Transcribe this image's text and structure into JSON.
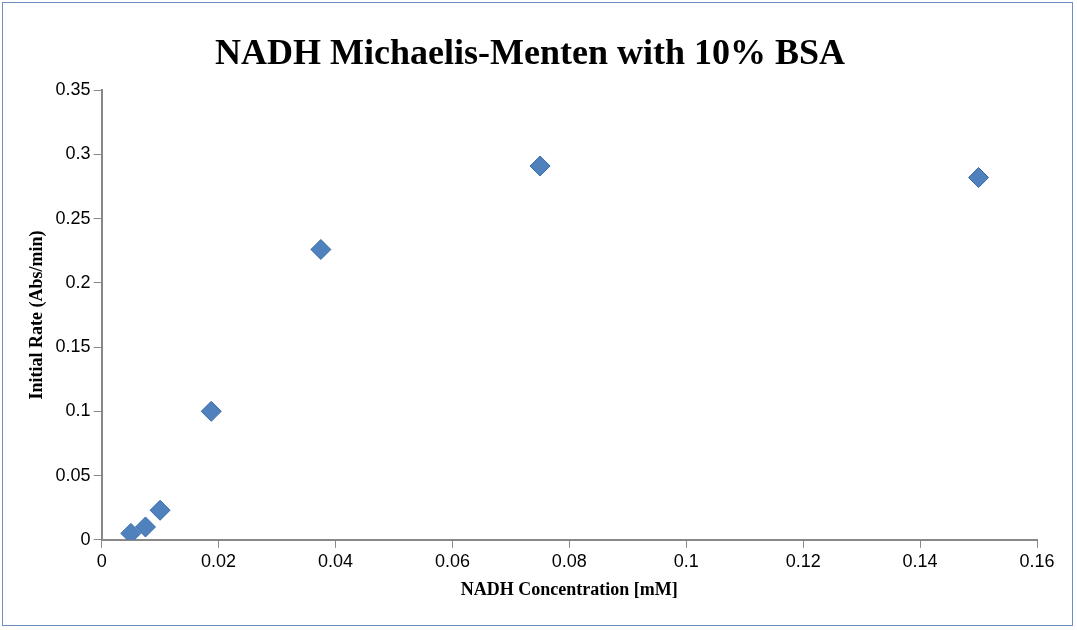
{
  "chart_data": {
    "type": "scatter",
    "title": "NADH Michaelis-Menten with 10% BSA",
    "xlabel": "NADH Concentration [mM]",
    "ylabel": "Initial Rate (Abs/min)",
    "x": [
      0.005,
      0.0075,
      0.01,
      0.01875,
      0.0375,
      0.075,
      0.15
    ],
    "series": [
      {
        "color": "#4f81bd",
        "values": [
          0.005,
          0.01,
          0.023,
          0.1,
          0.226,
          0.291,
          0.282
        ]
      }
    ],
    "xlim": [
      0,
      0.16
    ],
    "xticks": [
      0,
      0.02,
      0.04,
      0.06,
      0.08,
      0.1,
      0.12,
      0.14,
      0.16
    ],
    "ylim": [
      0,
      0.35
    ],
    "yticks": [
      0,
      0.05,
      0.1,
      0.15,
      0.2,
      0.25,
      0.3,
      0.35
    ],
    "grid": false,
    "legend": false,
    "marker": "diamond"
  }
}
